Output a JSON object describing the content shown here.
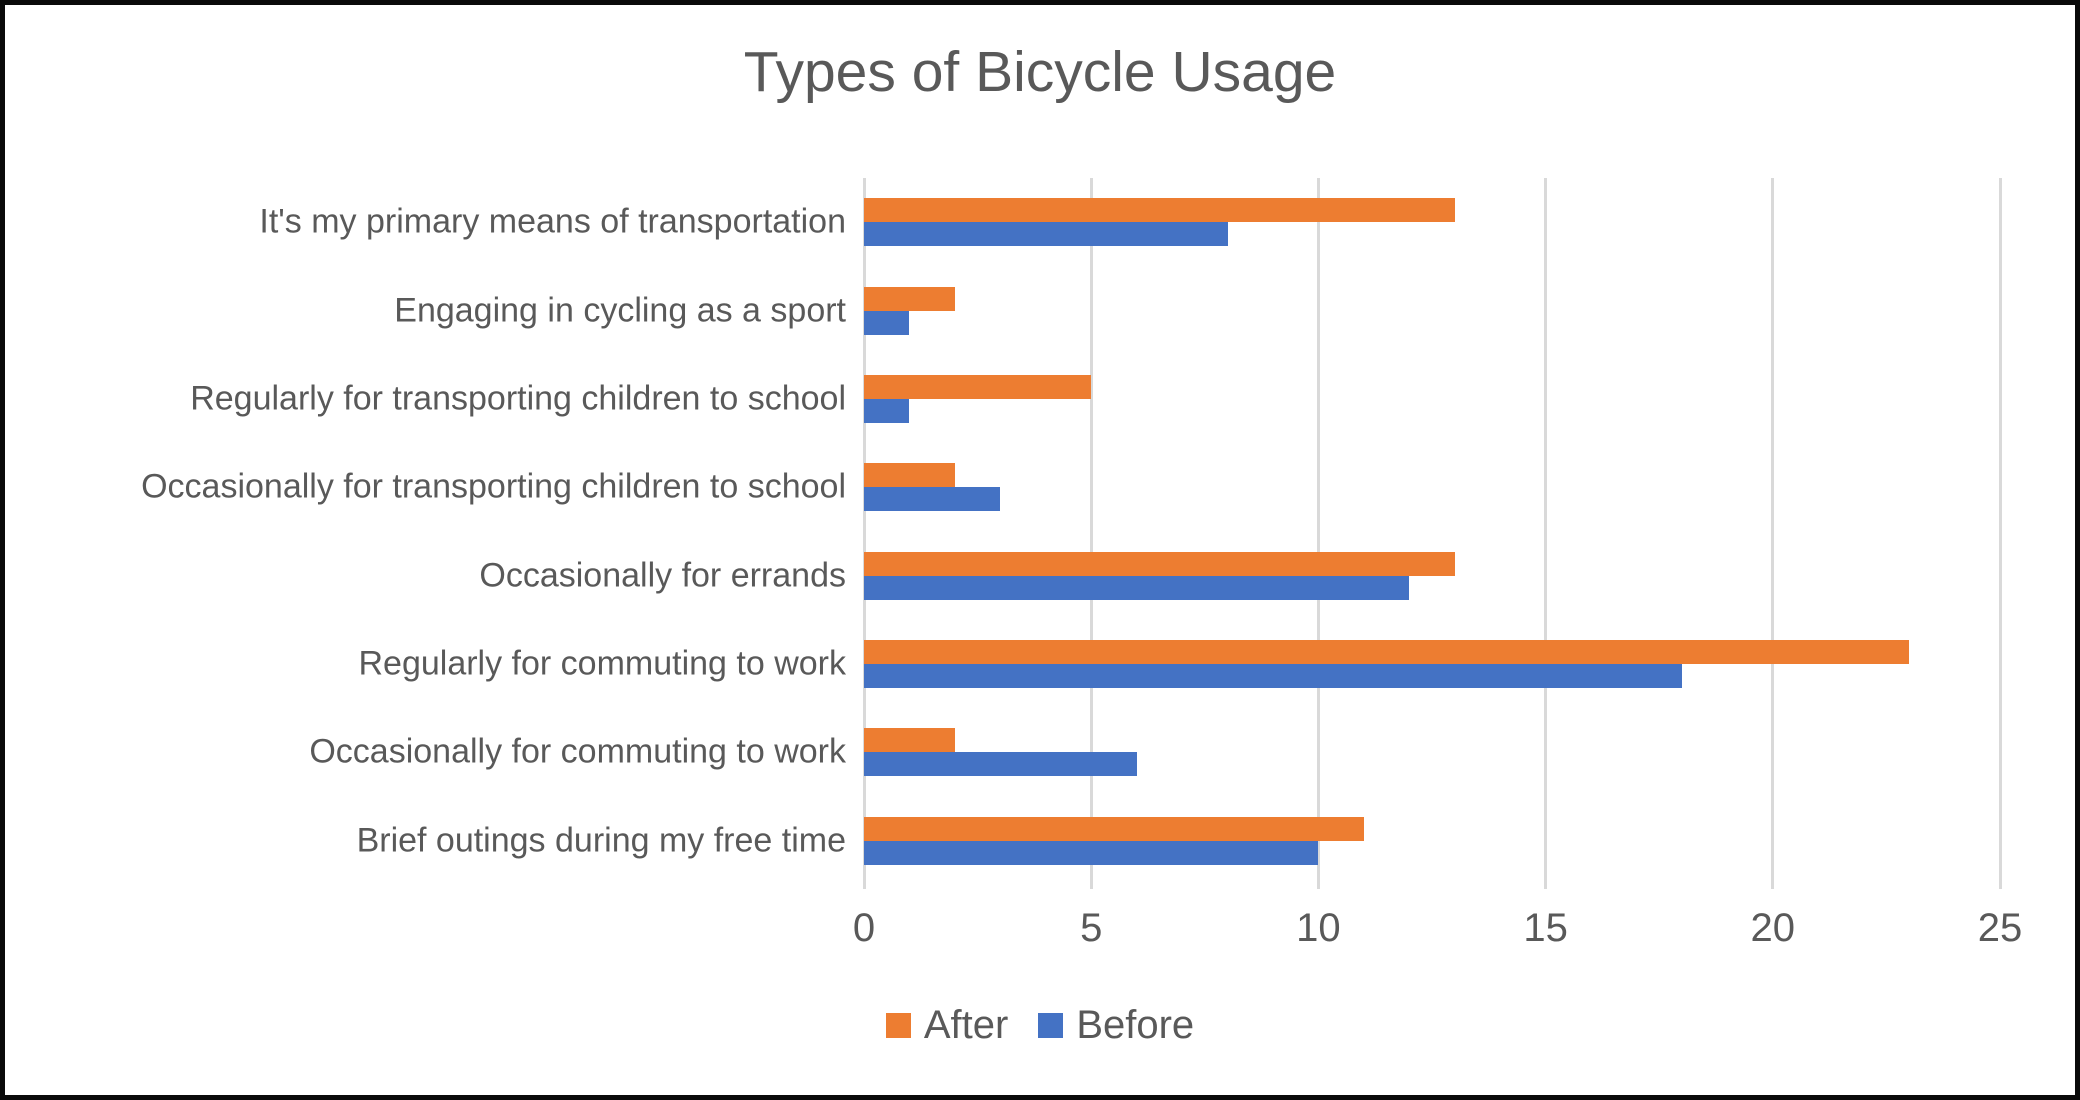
{
  "frame": {
    "border_color": "#0a0a0a",
    "background_color": "#ffffff"
  },
  "chart_data": {
    "type": "bar",
    "orientation": "horizontal",
    "title": "Types of Bicycle Usage",
    "categories": [
      "It's my primary means of transportation",
      "Engaging in cycling as a sport",
      "Regularly for transporting children to school",
      "Occasionally for transporting children to school",
      "Occasionally for errands",
      "Regularly for commuting to work",
      "Occasionally for commuting to work",
      "Brief outings during my free time"
    ],
    "series": [
      {
        "name": "After",
        "color": "#ED7D31",
        "values": [
          13,
          2,
          5,
          2,
          13,
          23,
          2,
          11
        ]
      },
      {
        "name": "Before",
        "color": "#4472C4",
        "values": [
          8,
          1,
          1,
          3,
          12,
          18,
          6,
          10
        ]
      }
    ],
    "x_axis": {
      "min": 0,
      "max": 25,
      "ticks": [
        0,
        5,
        10,
        15,
        20,
        25
      ]
    },
    "grid": true,
    "gridline_color": "#D9D9D9",
    "text_color": "#595959",
    "legend_position": "bottom"
  }
}
